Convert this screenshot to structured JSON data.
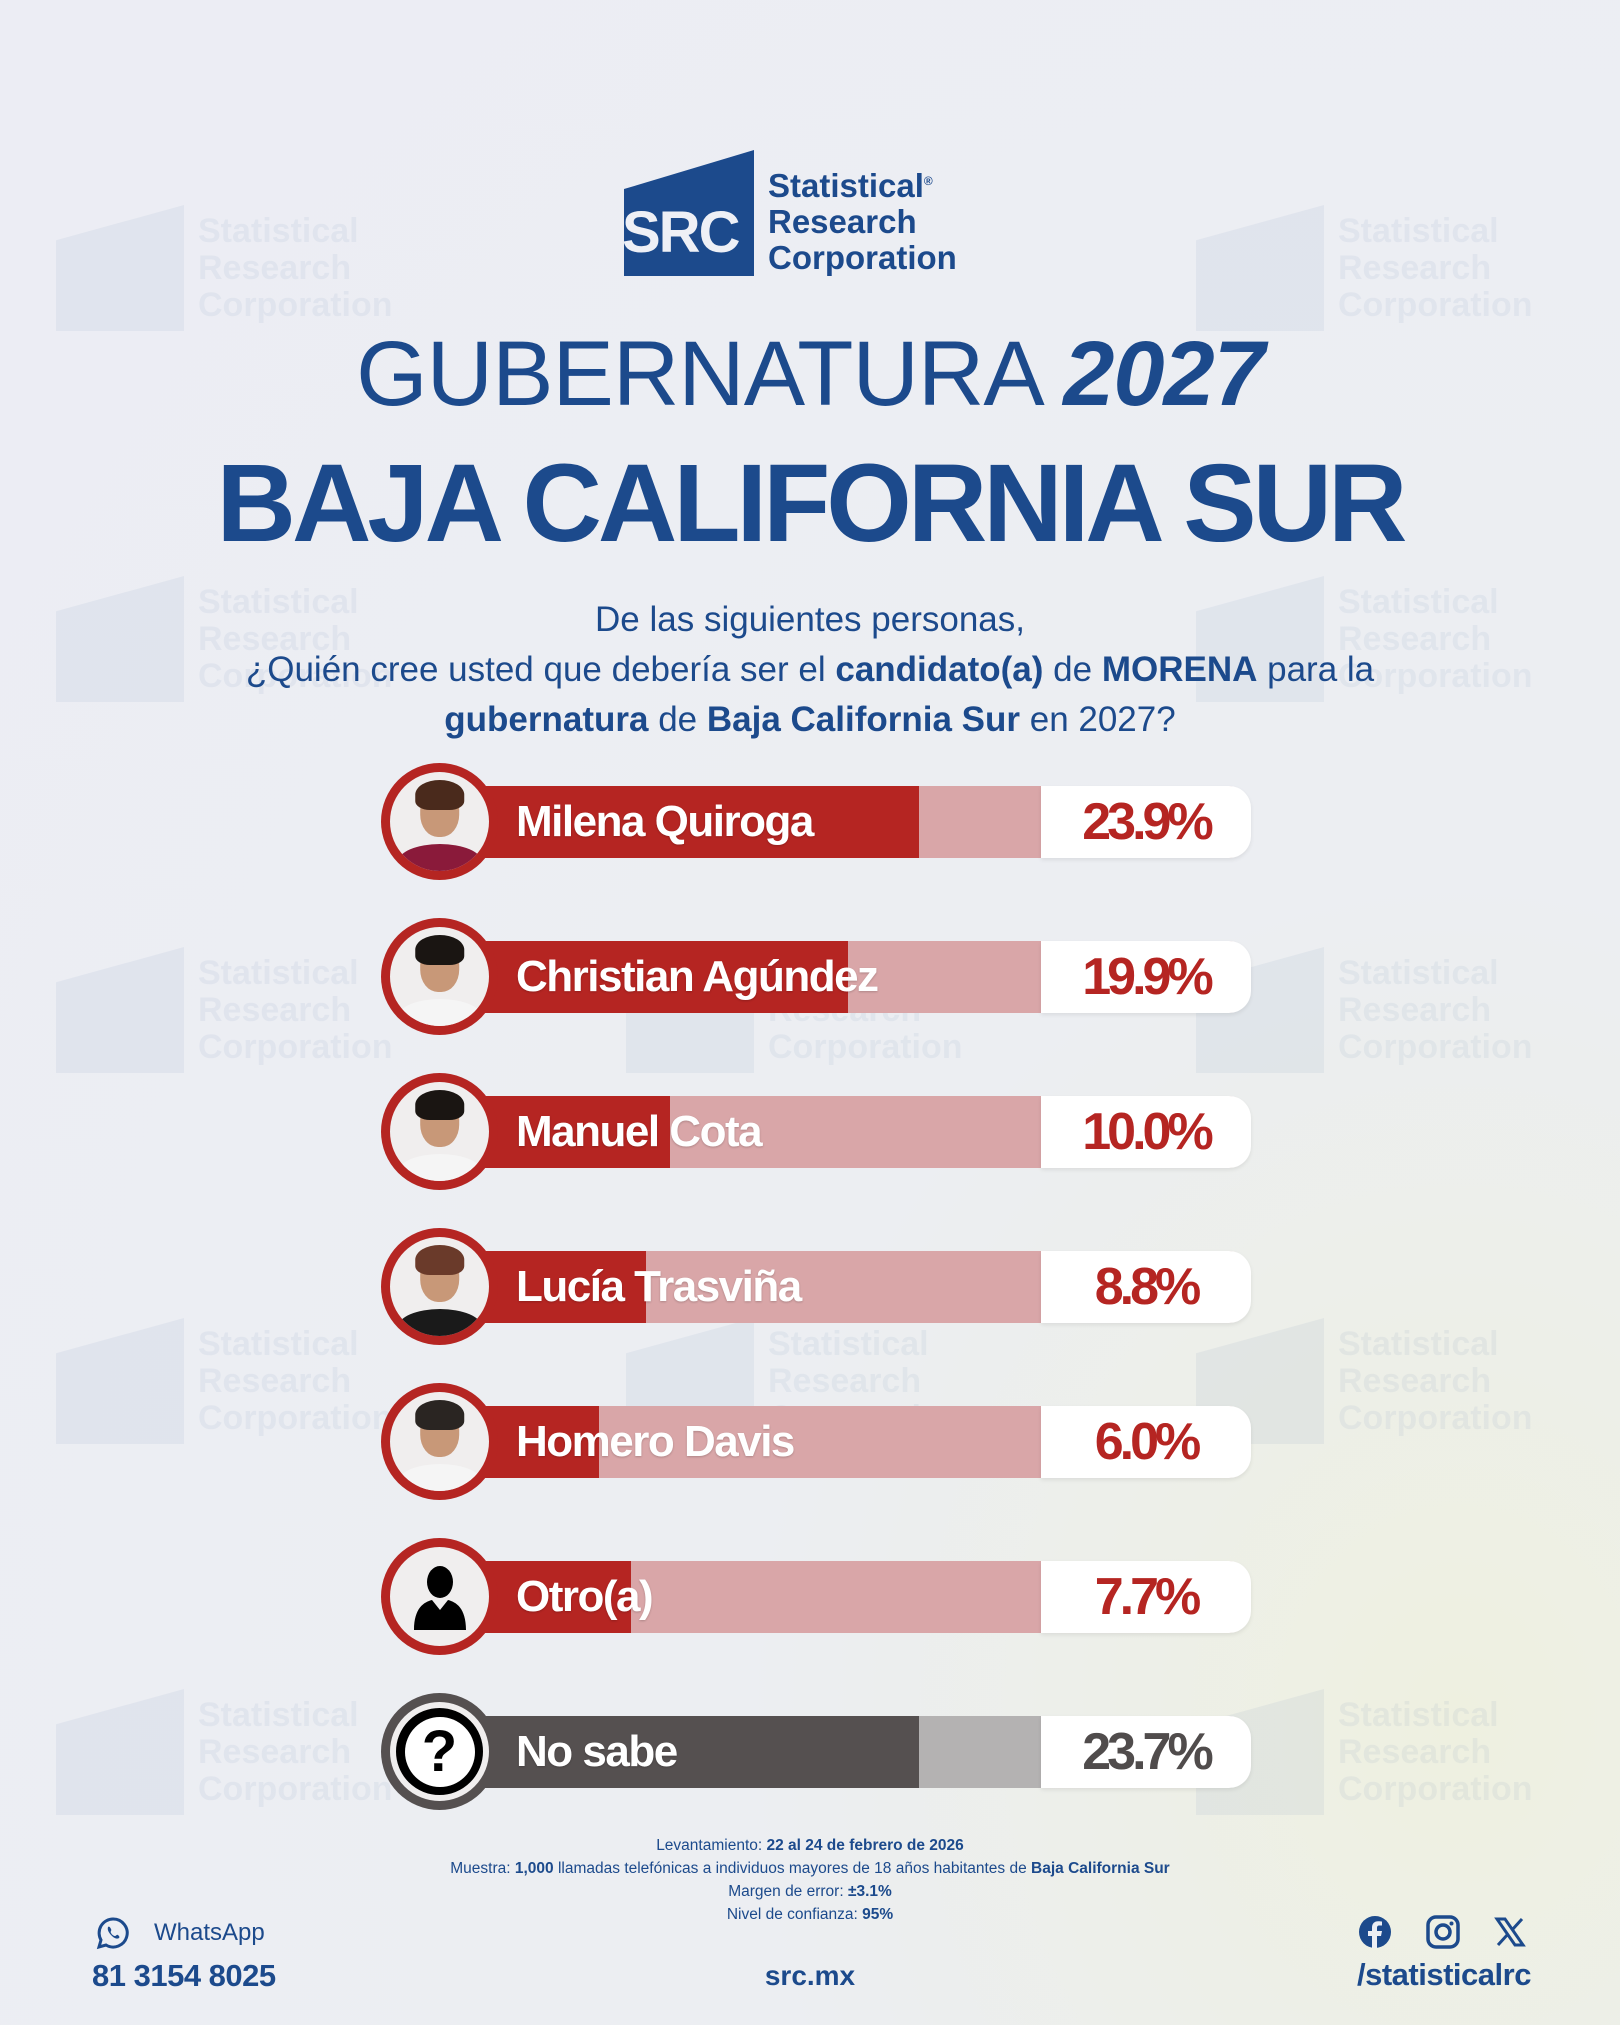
{
  "brand": {
    "logo_mark": "SRC",
    "name_lines": [
      "Statistical",
      "Research",
      "Corporation"
    ],
    "registered": "®",
    "watermark_lines": [
      "Statistical",
      "Research",
      "Corporation"
    ],
    "primary_color": "#1c4a8c",
    "accent_color": "#b52522",
    "muted_color": "#555050"
  },
  "header": {
    "title_light": "GUBERNATURA",
    "title_bold": "2027",
    "subtitle": "BAJA CALIFORNIA SUR"
  },
  "question": {
    "line1": "De las siguientes personas,",
    "line2_a": "¿Quién cree usted que debería ser el ",
    "line2_b": "candidato(a)",
    "line2_c": " de ",
    "line2_d": "MORENA",
    "line2_e": " para la",
    "line3_a": "gubernatura",
    "line3_b": " de ",
    "line3_c": "Baja California Sur",
    "line3_d": " en 2027?"
  },
  "chart_data": {
    "type": "bar",
    "orientation": "horizontal",
    "title": "GUBERNATURA 2027 — BAJA CALIFORNIA SUR",
    "subtitle": "¿Quién cree usted que debería ser el candidato(a) de MORENA para la gubernatura de Baja California Sur en 2027?",
    "categories": [
      "Milena Quiroga",
      "Christian Agúndez",
      "Manuel Cota",
      "Lucía Trasviña",
      "Homero Davis",
      "Otro(a)",
      "No sabe"
    ],
    "values": [
      23.9,
      19.9,
      10.0,
      8.8,
      6.0,
      7.7,
      23.7
    ],
    "value_labels": [
      "23.9%",
      "19.9%",
      "10.0%",
      "8.8%",
      "6.0%",
      "7.7%",
      "23.7%"
    ],
    "unit": "%",
    "xlabel": "",
    "ylabel": "",
    "legend": "none",
    "grid": false
  },
  "rows": [
    {
      "name": "Milena Quiroga",
      "label": "23.9%",
      "fill_pct": 58,
      "icon": "photo-milena-quiroga",
      "hair": "#4a2a1c",
      "torso": "#8a1a3a"
    },
    {
      "name": "Christian Agúndez",
      "label": "19.9%",
      "fill_pct": 49,
      "icon": "photo-christian-agundez",
      "hair": "#1a1512",
      "torso": "#f5f5f5"
    },
    {
      "name": "Manuel Cota",
      "label": "10.0%",
      "fill_pct": 26.5,
      "icon": "photo-manuel-cota",
      "hair": "#1a1512",
      "torso": "#f5f5f5"
    },
    {
      "name": "Lucía Trasviña",
      "label": "8.8%",
      "fill_pct": 23.5,
      "icon": "photo-lucia-trasvina",
      "hair": "#6a3a2a",
      "torso": "#1a1a1a"
    },
    {
      "name": "Homero Davis",
      "label": "6.0%",
      "fill_pct": 17.5,
      "icon": "photo-homero-davis",
      "hair": "#2a2522",
      "torso": "#f5f5f5"
    },
    {
      "name": "Otro(a)",
      "label": "7.7%",
      "fill_pct": 21.5,
      "icon": "person-icon"
    },
    {
      "name": "No sabe",
      "label": "23.7%",
      "fill_pct": 58,
      "icon": "question-mark-icon"
    }
  ],
  "methodology": {
    "fieldwork_label": "Levantamiento: ",
    "fieldwork_value": "22 al 24 de febrero de 2026",
    "sample_label": "Muestra: ",
    "sample_n": "1,000",
    "sample_text": " llamadas telefónicas a individuos mayores de 18 años habitantes de ",
    "sample_place": "Baja California Sur",
    "margin_label": "Margen de error: ",
    "margin_value": "±3.1%",
    "confidence_label": "Nivel de confianza: ",
    "confidence_value": "95%"
  },
  "footer": {
    "whatsapp_label": "WhatsApp",
    "phone": "81 3154 8025",
    "website": "src.mx",
    "social_handle": "/statisticalrc",
    "social_icons": [
      "facebook-icon",
      "instagram-icon",
      "x-icon"
    ]
  }
}
